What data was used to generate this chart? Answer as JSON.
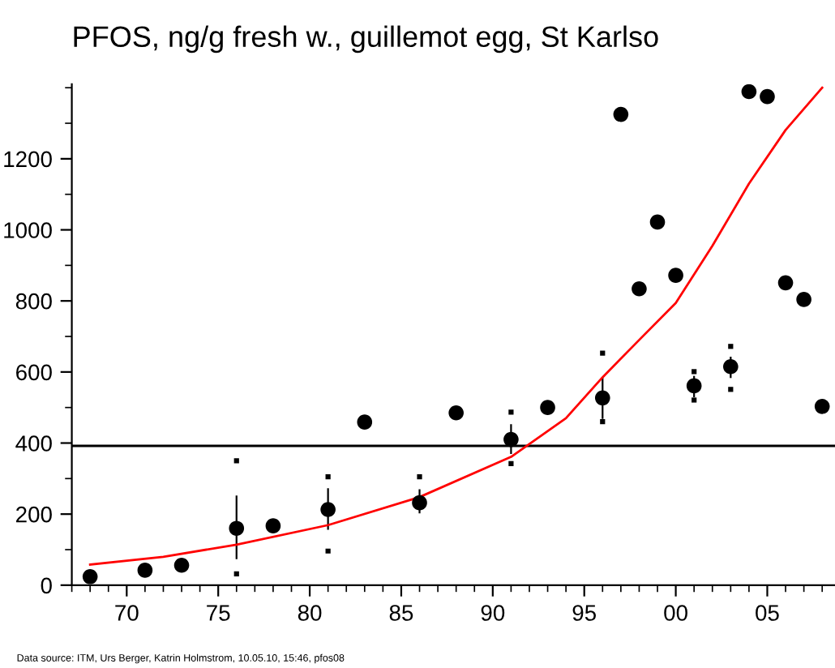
{
  "chart_data": {
    "type": "scatter",
    "title": "PFOS, ng/g fresh w., guillemot egg, St Karlso",
    "annotations": [
      "Data source: ITM, Urs Berger, Katrin Holmstrom, 10.05.10, 15:46, pfos08"
    ],
    "xlim": [
      1967,
      2008.7
    ],
    "ylim": [
      0,
      1410
    ],
    "xticks": [
      {
        "value": 1970,
        "label": "70"
      },
      {
        "value": 1975,
        "label": "75"
      },
      {
        "value": 1980,
        "label": "80"
      },
      {
        "value": 1985,
        "label": "85"
      },
      {
        "value": 1990,
        "label": "90"
      },
      {
        "value": 1995,
        "label": "95"
      },
      {
        "value": 2000,
        "label": "00"
      },
      {
        "value": 2005,
        "label": "05"
      }
    ],
    "yticks": [
      0,
      200,
      400,
      600,
      800,
      1000,
      1200
    ],
    "grid": false,
    "legend": false,
    "marker": "none",
    "ref_lines": [
      {
        "axis": "y",
        "value": 392,
        "color": "#000000"
      }
    ],
    "series": [
      {
        "color": "#000000",
        "marker": "circle",
        "x": [
          1968,
          1971,
          1973,
          1976,
          1978,
          1981,
          1983,
          1986,
          1988,
          1991,
          1993,
          1996,
          1997,
          1998,
          1999,
          2000,
          2001,
          2003,
          2004,
          2005,
          2006,
          2007,
          2008
        ],
        "values": [
          24,
          42,
          56,
          160,
          167,
          213,
          459,
          232,
          485,
          410,
          500,
          527,
          1325,
          834,
          1022,
          872,
          561,
          615,
          1389,
          1375,
          851,
          804,
          503
        ],
        "errors": [
          null,
          null,
          null,
          [
            73,
            252
          ],
          null,
          [
            156,
            273
          ],
          null,
          [
            202,
            270
          ],
          null,
          [
            369,
            453
          ],
          null,
          [
            468,
            585
          ],
          null,
          null,
          null,
          null,
          [
            529,
            589
          ],
          [
            583,
            643
          ],
          null,
          null,
          null,
          null,
          null
        ]
      },
      {
        "color": "#000000",
        "marker": "square",
        "x": [
          1976,
          1976,
          1981,
          1981,
          1986,
          1991,
          1991,
          1996,
          1996,
          2001,
          2001,
          2003,
          2003
        ],
        "values": [
          350,
          32,
          305,
          96,
          305,
          487,
          342,
          653,
          460,
          601,
          521,
          672,
          551
        ]
      },
      {
        "type": "line",
        "color": "#ff0000",
        "line_style": "solid",
        "x": [
          1968,
          1972,
          1976,
          1981,
          1986,
          1991,
          1994,
          1996,
          1998,
          2000,
          2002,
          2004,
          2006,
          2008
        ],
        "values": [
          58,
          80,
          114,
          169,
          248,
          361,
          470,
          585,
          690,
          794,
          955,
          1130,
          1281,
          1400
        ]
      }
    ]
  }
}
